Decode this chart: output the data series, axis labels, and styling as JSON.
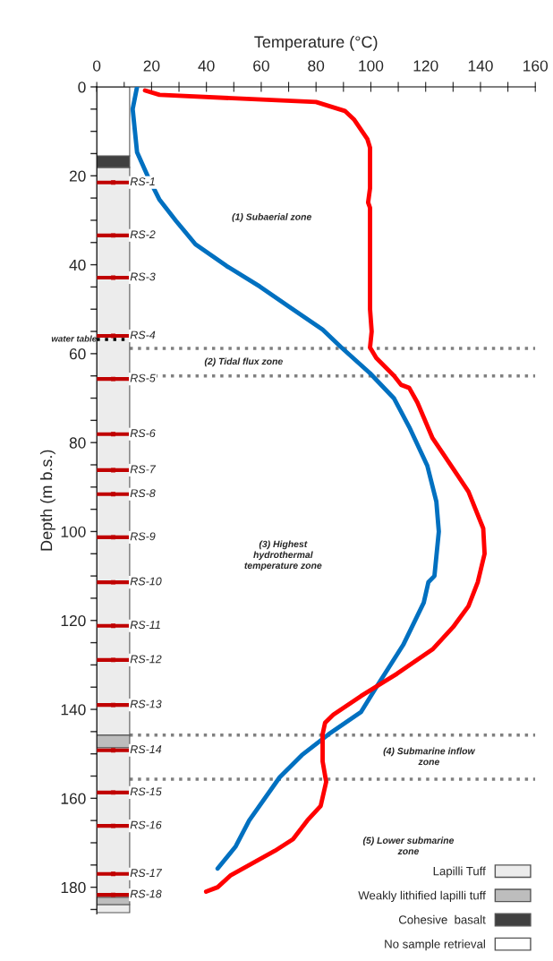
{
  "chart_data": {
    "type": "line",
    "xlabel": "Temperature (°C)",
    "ylabel": "Depth (m b.s.)",
    "xlim": [
      0,
      160
    ],
    "ylim": [
      186,
      0
    ],
    "xticks": [
      0,
      {
        "value": 10,
        "label": null
      },
      20,
      {
        "value": 30,
        "label": null
      },
      40,
      {
        "value": 50,
        "label": null
      },
      60,
      {
        "value": 70,
        "label": null
      },
      80,
      {
        "value": 90,
        "label": null
      },
      100,
      {
        "value": 110,
        "label": null
      },
      120,
      {
        "value": 130,
        "label": null
      },
      140,
      {
        "value": 150,
        "label": null
      },
      160
    ],
    "yticks": [
      0,
      {
        "value": 5,
        "label": null
      },
      {
        "value": 10,
        "label": null
      },
      {
        "value": 15,
        "label": null
      },
      20,
      {
        "value": 25,
        "label": null
      },
      {
        "value": 30,
        "label": null
      },
      {
        "value": 35,
        "label": null
      },
      40,
      {
        "value": 45,
        "label": null
      },
      {
        "value": 50,
        "label": null
      },
      {
        "value": 55,
        "label": null
      },
      60,
      {
        "value": 65,
        "label": null
      },
      {
        "value": 70,
        "label": null
      },
      {
        "value": 75,
        "label": null
      },
      80,
      {
        "value": 85,
        "label": null
      },
      {
        "value": 90,
        "label": null
      },
      {
        "value": 95,
        "label": null
      },
      100,
      {
        "value": 105,
        "label": null
      },
      {
        "value": 110,
        "label": null
      },
      {
        "value": 115,
        "label": null
      },
      120,
      {
        "value": 125,
        "label": null
      },
      {
        "value": 130,
        "label": null
      },
      {
        "value": 135,
        "label": null
      },
      140,
      {
        "value": 145,
        "label": null
      },
      {
        "value": 150,
        "label": null
      },
      {
        "value": 155,
        "label": null
      },
      160,
      {
        "value": 165,
        "label": null
      },
      {
        "value": 170,
        "label": null
      },
      {
        "value": 175,
        "label": null
      },
      180,
      {
        "value": 185,
        "label": null
      }
    ],
    "grid": false,
    "legend": "bottom right",
    "series": [
      {
        "type": "bar",
        "name": "Lapilli Tuff",
        "color": "#ececec",
        "x": [
          6
        ],
        "base": [
          18.1
        ],
        "values": [
          127.7
        ]
      },
      {
        "type": "bar",
        "color": "#ececec",
        "x": [
          6
        ],
        "base": [
          148.6
        ],
        "values": [
          33.7
        ]
      },
      {
        "type": "bar",
        "color": "#ececec",
        "x": [
          6
        ],
        "base": [
          183.9
        ],
        "values": [
          1.8
        ]
      },
      {
        "type": "bar",
        "name": "Weakly lithified lapilli tuff",
        "color": "#bdbdbd",
        "x": [
          6
        ],
        "base": [
          145.8
        ],
        "values": [
          2.8
        ]
      },
      {
        "type": "bar",
        "color": "#bdbdbd",
        "x": [
          6
        ],
        "base": [
          182.3
        ],
        "values": [
          1.6
        ]
      },
      {
        "type": "bar",
        "name": "Cohesive  basalt",
        "color": "#404040",
        "x": [
          6
        ],
        "base": [
          15.5
        ],
        "values": [
          2.6
        ]
      },
      {
        "type": "bar",
        "name": "No sample retrieval",
        "color": "#ffffff",
        "x": [
          6
        ],
        "base": [
          0
        ],
        "values": [
          15.5
        ]
      },
      {
        "name": "water table",
        "color": "#000000",
        "line_style": "dotted",
        "x": [
          0,
          12
        ],
        "values": [
          56.8,
          56.8
        ]
      },
      {
        "type": "scatter",
        "color": "#c00000",
        "marker": "square",
        "xerrors": [
          6,
          6,
          6,
          6,
          6,
          6,
          6,
          6,
          6,
          6,
          6,
          6,
          6,
          6,
          6,
          6,
          6,
          6
        ],
        "x": [
          6,
          6,
          6,
          6,
          6,
          6,
          6,
          6,
          6,
          6,
          6,
          6,
          6,
          6,
          6,
          6,
          6,
          6
        ],
        "values": [
          21.5,
          33.4,
          42.9,
          56,
          65.7,
          78.1,
          86.2,
          91.6,
          101.3,
          111.4,
          121.2,
          128.9,
          139,
          149.2,
          158.7,
          166.2,
          177,
          181.7
        ],
        "value_labels": [
          "RS-1",
          "RS-2",
          "RS-3",
          "RS-4",
          "RS-5",
          "RS-6",
          "RS-7",
          "RS-8",
          "RS-9",
          "RS-10",
          "RS-11",
          "RS-12",
          "RS-13",
          "RS-14",
          "RS-15",
          "RS-16",
          "RS-17",
          "RS-18"
        ]
      },
      {
        "color": "#0070c0",
        "line_style": "solid",
        "x": [
          14.7,
          13.1,
          14.7,
          18.6,
          22.9,
          29,
          36,
          47.4,
          59.5,
          70.3,
          82.4,
          88.9,
          99.7,
          108.5,
          114,
          120.6,
          123.9,
          124.8,
          123.2,
          121,
          119.3,
          111.8,
          102,
          96.4,
          84.6,
          74.8,
          66.7,
          55.6,
          50.7,
          44.1
        ],
        "values": [
          0,
          5,
          14.7,
          20.1,
          25.4,
          30.2,
          35.4,
          40.3,
          44.9,
          49.5,
          54.6,
          58.4,
          64.4,
          70.1,
          76.5,
          85.2,
          93.3,
          100,
          110,
          111.4,
          116,
          125.5,
          135,
          140.6,
          145.6,
          150.3,
          155.3,
          165,
          170.8,
          175.8
        ]
      },
      {
        "color": "#ff0000",
        "line_style": "solid",
        "x": [
          17.6,
          22.9,
          80,
          90.5,
          93.8,
          98.7,
          99.7,
          99.7,
          99,
          99.7,
          99.7,
          100.3,
          99.7,
          102,
          108.5,
          111,
          114,
          117,
          122.5,
          128,
          135.6,
          141,
          141.5,
          139,
          135.6,
          130,
          122.5,
          109.5,
          96.4,
          86.3,
          83.3,
          82.4,
          82.4,
          83.7,
          81.7,
          76.8,
          71.6,
          65,
          56.2,
          48.7,
          44.1,
          39.9
        ],
        "values": [
          0.8,
          1.8,
          3.4,
          5.4,
          7.3,
          11.7,
          13.7,
          22.8,
          26,
          27.2,
          50,
          55,
          58.6,
          61,
          65,
          67,
          67.7,
          71,
          79,
          84,
          91,
          99.3,
          105,
          111.4,
          116.8,
          121.5,
          126.5,
          132,
          137,
          141.2,
          143,
          145.6,
          151.7,
          156.3,
          161.7,
          165,
          169.2,
          171.8,
          174.8,
          177.4,
          180,
          181
        ]
      }
    ],
    "ref_lines": [
      {
        "axis": "y",
        "value": 58.8,
        "color": "#808080",
        "line_style": "dotted"
      },
      {
        "axis": "y",
        "value": 65,
        "color": "#808080",
        "line_style": "dotted"
      },
      {
        "axis": "y",
        "value": 145.8,
        "color": "#808080",
        "line_style": "dotted"
      },
      {
        "axis": "y",
        "value": 155.7,
        "color": "#808080",
        "line_style": "dotted"
      }
    ],
    "annotations": [
      "(1) Subaerial zone",
      "(2) Tidal flux zone",
      "(3) Highest\nhydrothermal\ntemperature zone",
      "(4) Submarine inflow\nzone",
      "(5) Lower submarine\nzone"
    ]
  }
}
